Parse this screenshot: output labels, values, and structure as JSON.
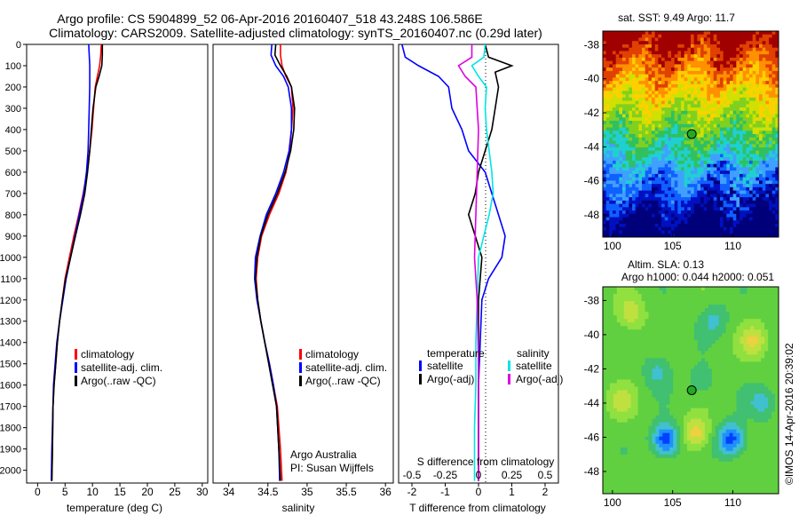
{
  "header": {
    "line1": "Argo profile: CS 5904899_52 06-Apr-2016 20160407_518 43.248S 106.586E",
    "line2": "Climatology: CARS2009. Satellite-adjusted climatology: synTS_20160407.nc (0.29d later)"
  },
  "side_stamp": "©IMOS 14-Apr-2016 20:39:02",
  "colors": {
    "climatology": "#ff0000",
    "satellite": "#0000ff",
    "argo": "#000000",
    "satellite_salinity": "#00e5e5",
    "argo_salinity": "#e000e0",
    "map_marker": "#22aa22"
  },
  "chart_data": [
    {
      "type": "line",
      "panel": "temperature",
      "xlabel": "temperature (deg C)",
      "xlim": [
        -2,
        31
      ],
      "xticks": [
        "0",
        "5",
        "10",
        "15",
        "20",
        "25",
        "30"
      ],
      "xtick_values": [
        0,
        5,
        10,
        15,
        20,
        25,
        30
      ],
      "ylim": [
        0,
        2060
      ],
      "yticks": [
        "0",
        "100",
        "200",
        "300",
        "400",
        "500",
        "600",
        "700",
        "800",
        "900",
        "1000",
        "1100",
        "1200",
        "1300",
        "1400",
        "1500",
        "1600",
        "1700",
        "1800",
        "1900",
        "2000"
      ],
      "ytick_values": [
        0,
        100,
        200,
        300,
        400,
        500,
        600,
        700,
        800,
        900,
        1000,
        1100,
        1200,
        1300,
        1400,
        1500,
        1600,
        1700,
        1800,
        1900,
        2000
      ],
      "legend": [
        "climatology",
        "satellite-adj. clim.",
        "Argo(..raw -QC)"
      ],
      "series": [
        {
          "name": "climatology",
          "color": "#ff0000",
          "x": [
            11.6,
            11.5,
            11.3,
            10.9,
            10.5,
            10.2,
            9.9,
            9.5,
            9.0,
            8.3,
            7.5,
            6.6,
            5.8,
            5.0,
            4.5,
            4.0,
            3.6,
            3.3,
            3.0,
            2.8,
            2.7,
            2.6
          ],
          "y": [
            0,
            50,
            100,
            150,
            200,
            300,
            400,
            500,
            600,
            700,
            800,
            900,
            1000,
            1100,
            1200,
            1300,
            1400,
            1500,
            1600,
            1700,
            1900,
            2050
          ]
        },
        {
          "name": "satellite-adj. clim.",
          "color": "#0000ff",
          "x": [
            9.3,
            9.4,
            9.5,
            9.5,
            9.5,
            9.4,
            9.3,
            9.2,
            8.9,
            8.4,
            7.6,
            6.8,
            6.0,
            5.2,
            4.6,
            4.0,
            3.5,
            3.2,
            2.9,
            2.8,
            2.6,
            2.5
          ],
          "y": [
            0,
            50,
            100,
            150,
            200,
            300,
            400,
            500,
            600,
            700,
            800,
            900,
            1000,
            1100,
            1200,
            1300,
            1400,
            1500,
            1600,
            1700,
            1900,
            2050
          ]
        },
        {
          "name": "Argo(..raw -QC)",
          "color": "#000000",
          "x": [
            11.8,
            11.8,
            11.7,
            11.2,
            10.6,
            10.1,
            9.8,
            9.5,
            9.1,
            8.6,
            7.8,
            6.9,
            6.0,
            5.1,
            4.5,
            4.0,
            3.6,
            3.3,
            3.0,
            2.8,
            2.7,
            2.6
          ],
          "y": [
            0,
            50,
            100,
            150,
            200,
            300,
            400,
            500,
            600,
            700,
            800,
            900,
            1000,
            1100,
            1200,
            1300,
            1400,
            1500,
            1600,
            1700,
            1900,
            2050
          ]
        }
      ]
    },
    {
      "type": "line",
      "panel": "salinity",
      "xlabel": "salinity",
      "xlim": [
        33.8,
        36.1
      ],
      "xticks": [
        "34",
        "34.5",
        "35",
        "35.5",
        "36"
      ],
      "xtick_values": [
        34,
        34.5,
        35,
        35.5,
        36
      ],
      "ylim": [
        0,
        2060
      ],
      "legend": [
        "climatology",
        "satellite-adj. clim.",
        "Argo(..raw -QC)"
      ],
      "annotation_lines": [
        "Argo Australia",
        "PI: Susan Wijffels"
      ],
      "series": [
        {
          "name": "climatology",
          "color": "#ff0000",
          "x": [
            34.66,
            34.66,
            34.68,
            34.73,
            34.8,
            34.82,
            34.8,
            34.78,
            34.73,
            34.64,
            34.52,
            34.42,
            34.37,
            34.35,
            34.37,
            34.41,
            34.46,
            34.52,
            34.57,
            34.62,
            34.66,
            34.68
          ],
          "y": [
            0,
            50,
            100,
            150,
            200,
            300,
            400,
            500,
            600,
            700,
            800,
            900,
            1000,
            1100,
            1200,
            1300,
            1400,
            1500,
            1600,
            1700,
            1900,
            2050
          ]
        },
        {
          "name": "satellite-adj. clim.",
          "color": "#0000ff",
          "x": [
            34.55,
            34.54,
            34.6,
            34.7,
            34.76,
            34.8,
            34.8,
            34.77,
            34.7,
            34.6,
            34.48,
            34.4,
            34.34,
            34.33,
            34.36,
            34.41,
            34.46,
            34.52,
            34.57,
            34.61,
            34.64,
            34.65
          ],
          "y": [
            0,
            50,
            100,
            150,
            200,
            300,
            400,
            500,
            600,
            700,
            800,
            900,
            1000,
            1100,
            1200,
            1300,
            1400,
            1500,
            1600,
            1700,
            1900,
            2050
          ]
        },
        {
          "name": "Argo(..raw -QC)",
          "color": "#000000",
          "x": [
            34.6,
            34.59,
            34.66,
            34.74,
            34.8,
            34.84,
            34.83,
            34.79,
            34.72,
            34.62,
            34.5,
            34.41,
            34.36,
            34.34,
            34.37,
            34.41,
            34.46,
            34.51,
            34.56,
            34.61,
            34.64,
            34.66
          ],
          "y": [
            0,
            50,
            100,
            150,
            200,
            300,
            400,
            500,
            600,
            700,
            800,
            900,
            1000,
            1100,
            1200,
            1300,
            1400,
            1500,
            1600,
            1700,
            1900,
            2050
          ]
        }
      ]
    },
    {
      "type": "line",
      "panel": "difference",
      "xlabel": "T difference from climatology",
      "xlabel_top": "S difference from climatology",
      "t_xlim": [
        -2.4,
        2.4
      ],
      "t_xticks": [
        "-2",
        "-1",
        "0",
        "1",
        "2"
      ],
      "t_xtick_values": [
        -2,
        -1,
        0,
        1,
        2
      ],
      "s_xticks": [
        "-0.5",
        "-0.25",
        "0",
        "0.25",
        "0.5"
      ],
      "s_xtick_values": [
        -0.5,
        -0.25,
        0,
        0.25,
        0.5
      ],
      "ylim": [
        0,
        2060
      ],
      "legend_headers": [
        "temperature",
        "salinity"
      ],
      "legend_left": [
        "satellite",
        "Argo(-adj)"
      ],
      "legend_right": [
        "satellite",
        "Argo(-adj)"
      ],
      "series": [
        {
          "name": "temperature satellite",
          "color": "#0000ff",
          "x": [
            -2.3,
            -2.2,
            -1.8,
            -1.2,
            -0.9,
            -0.8,
            -0.5,
            -0.3,
            0.2,
            0.4,
            0.6,
            0.8,
            0.7,
            0.3,
            0.1,
            0.05,
            0.0,
            0.0,
            0.0
          ],
          "y": [
            0,
            60,
            100,
            150,
            200,
            300,
            400,
            500,
            600,
            700,
            800,
            900,
            1000,
            1100,
            1200,
            1400,
            1600,
            1800,
            2050
          ]
        },
        {
          "name": "temperature Argo(-adj)",
          "color": "#000000",
          "x": [
            0.2,
            0.3,
            1.0,
            0.5,
            0.6,
            0.5,
            0.4,
            0.2,
            0.0,
            -0.1,
            -0.3,
            -0.1,
            0.1,
            0.0,
            0.0,
            0.0,
            0.0
          ],
          "y": [
            0,
            60,
            100,
            130,
            200,
            300,
            400,
            500,
            600,
            700,
            800,
            900,
            1000,
            1200,
            1500,
            1800,
            2050
          ]
        },
        {
          "name": "salinity satellite",
          "color": "#00e5e5",
          "x": [
            0.05,
            0.04,
            -0.05,
            0.0,
            0.06,
            0.05,
            0.06,
            0.08,
            0.1,
            0.11,
            0.08,
            0.04,
            0.0,
            -0.01,
            -0.02,
            -0.02,
            -0.03,
            -0.03
          ],
          "y": [
            0,
            60,
            100,
            150,
            200,
            300,
            400,
            500,
            600,
            700,
            800,
            900,
            1000,
            1200,
            1400,
            1600,
            1800,
            2050
          ]
        },
        {
          "name": "salinity Argo(-adj)",
          "color": "#e000e0",
          "x": [
            -0.05,
            -0.05,
            -0.15,
            -0.1,
            -0.02,
            0.0,
            -0.01,
            -0.02,
            -0.03,
            -0.02,
            -0.01,
            0.0,
            0.0,
            0.0
          ],
          "y": [
            0,
            60,
            100,
            150,
            200,
            400,
            600,
            800,
            1000,
            1100,
            1200,
            1500,
            1800,
            2050
          ]
        }
      ]
    },
    {
      "type": "heatmap",
      "panel": "sst-map",
      "title": "sat. SST: 9.49 Argo: 11.7",
      "xticks": [
        "100",
        "105",
        "110"
      ],
      "xtick_values": [
        100,
        105,
        110
      ],
      "yticks": [
        "-38",
        "-40",
        "-42",
        "-44",
        "-46",
        "-48"
      ],
      "ytick_values": [
        -38,
        -40,
        -42,
        -44,
        -46,
        -48
      ],
      "xlim": [
        99.2,
        113.8
      ],
      "ylim": [
        -49.3,
        -37.2
      ],
      "argo_position": {
        "lon": 106.586,
        "lat": -43.248
      }
    },
    {
      "type": "heatmap",
      "panel": "sla-map",
      "title_lines": [
        "Altim. SLA: 0.13",
        "Argo h1000: 0.044 h2000: 0.051"
      ],
      "xticks": [
        "100",
        "105",
        "110"
      ],
      "xtick_values": [
        100,
        105,
        110
      ],
      "yticks": [
        "-38",
        "-40",
        "-42",
        "-44",
        "-46",
        "-48"
      ],
      "ytick_values": [
        -38,
        -40,
        -42,
        -44,
        -46,
        -48
      ],
      "xlim": [
        99.2,
        113.8
      ],
      "ylim": [
        -49.3,
        -37.2
      ],
      "argo_position": {
        "lon": 106.586,
        "lat": -43.248
      }
    }
  ]
}
